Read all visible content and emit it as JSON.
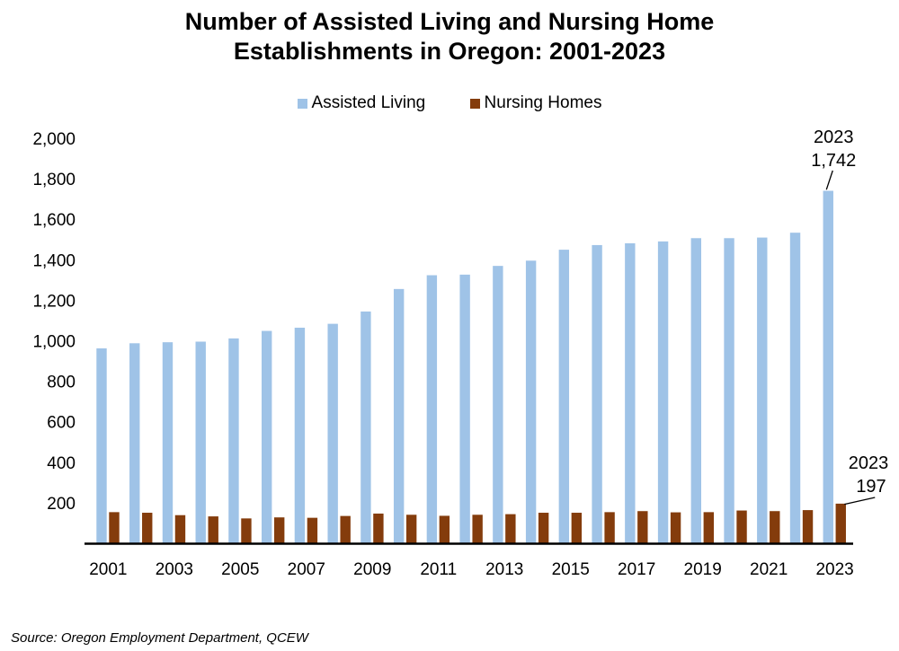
{
  "chart_data": {
    "type": "bar",
    "title": "Number of Assisted Living and Nursing Home Establishments in Oregon: 2001-2023",
    "title_lines": [
      "Number of Assisted Living and Nursing Home",
      "Establishments in Oregon: 2001-2023"
    ],
    "categories": [
      "2001",
      "2002",
      "2003",
      "2004",
      "2005",
      "2006",
      "2007",
      "2008",
      "2009",
      "2010",
      "2011",
      "2012",
      "2013",
      "2014",
      "2015",
      "2016",
      "2017",
      "2018",
      "2019",
      "2020",
      "2021",
      "2022",
      "2023"
    ],
    "xtick_labels": [
      "2001",
      "2003",
      "2005",
      "2007",
      "2009",
      "2011",
      "2013",
      "2015",
      "2017",
      "2019",
      "2021",
      "2023"
    ],
    "series": [
      {
        "name": "Assisted Living",
        "color": "#9fc3e7",
        "values": [
          964,
          989,
          994,
          997,
          1013,
          1050,
          1066,
          1085,
          1146,
          1257,
          1325,
          1328,
          1371,
          1397,
          1451,
          1474,
          1483,
          1492,
          1508,
          1508,
          1511,
          1535,
          1742
        ]
      },
      {
        "name": "Nursing Homes",
        "color": "#843c0c",
        "values": [
          155,
          152,
          140,
          134,
          124,
          129,
          127,
          136,
          148,
          142,
          137,
          142,
          145,
          152,
          152,
          155,
          160,
          154,
          155,
          163,
          160,
          165,
          197
        ]
      }
    ],
    "ylim": [
      0,
      2000
    ],
    "yticks": [
      200,
      400,
      600,
      800,
      1000,
      1200,
      1400,
      1600,
      1800,
      2000
    ],
    "ytick_labels": [
      "200",
      "400",
      "600",
      "800",
      "1,000",
      "1,200",
      "1,400",
      "1,600",
      "1,800",
      "2,000"
    ],
    "grid": false,
    "legend": "top-center",
    "annotations": [
      {
        "series": "Assisted Living",
        "category": "2023",
        "line1": "2023",
        "line2": "1,742"
      },
      {
        "series": "Nursing Homes",
        "category": "2023",
        "line1": "2023",
        "line2": "197"
      }
    ]
  },
  "source": "Source: Oregon Employment Department, QCEW"
}
